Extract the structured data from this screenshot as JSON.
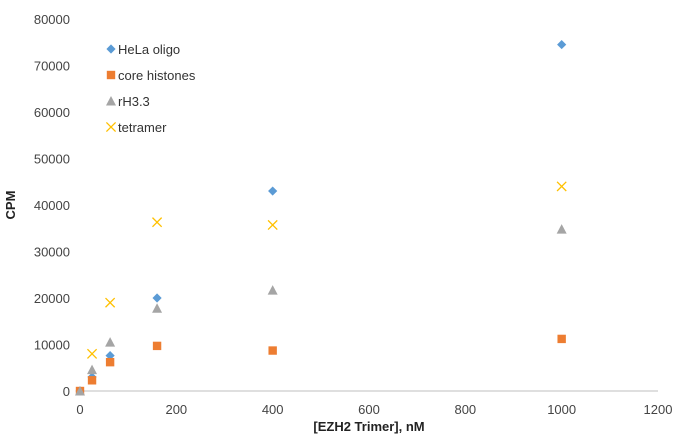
{
  "chart_data": {
    "type": "scatter",
    "title": "",
    "xlabel": "[EZH2 Trimer], nM",
    "ylabel": "CPM",
    "xlim": [
      0,
      1200
    ],
    "ylim": [
      0,
      80000
    ],
    "xticks": [
      0,
      200,
      400,
      600,
      800,
      1000,
      1200
    ],
    "yticks": [
      0,
      10000,
      20000,
      30000,
      40000,
      50000,
      60000,
      70000,
      80000
    ],
    "grid": false,
    "legend_position": "top-left",
    "series": [
      {
        "name": "HeLa oligo",
        "marker": "diamond",
        "color": "#5B9BD5",
        "x": [
          0,
          25,
          62.5,
          160,
          400,
          1000
        ],
        "y": [
          0,
          3000,
          7600,
          20000,
          43000,
          74500
        ]
      },
      {
        "name": "core histones",
        "marker": "square",
        "color": "#ED7D31",
        "x": [
          0,
          25,
          62.5,
          160,
          400,
          1000
        ],
        "y": [
          0,
          2300,
          6200,
          9700,
          8700,
          11200
        ]
      },
      {
        "name": "rH3.3",
        "marker": "triangle",
        "color": "#A5A5A5",
        "x": [
          0,
          25,
          62.5,
          160,
          400,
          1000
        ],
        "y": [
          0,
          4600,
          10500,
          17800,
          21700,
          34800
        ]
      },
      {
        "name": "tetramer",
        "marker": "x",
        "color": "#FFC000",
        "x": [
          25,
          62.5,
          160,
          400,
          1000
        ],
        "y": [
          8000,
          19000,
          36300,
          35700,
          44000
        ]
      }
    ]
  }
}
